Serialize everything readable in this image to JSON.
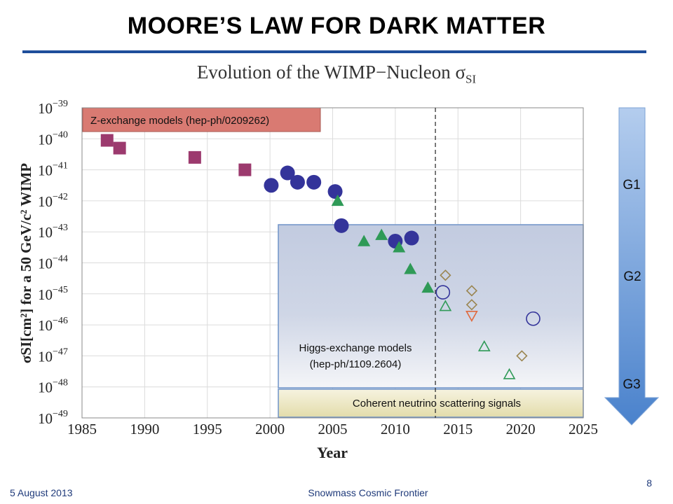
{
  "slide": {
    "title": "MOORE’S LAW FOR DARK MATTER",
    "footer_left": "5 August 2013",
    "footer_center": "Snowmass Cosmic Frontier",
    "page_number": "8"
  },
  "chart_data": {
    "type": "scatter",
    "title_main": "Evolution of the WIMP−Nucleon σ",
    "title_sub": "SI",
    "xlabel": "Year",
    "ylabel": "σSI[cm²] for a 50 GeV/c² WIMP",
    "xlim": [
      1985,
      2025
    ],
    "ylim_log10": [
      -49,
      -39
    ],
    "x_ticks": [
      1985,
      1990,
      1995,
      2000,
      2005,
      2010,
      2015,
      2020,
      2025
    ],
    "y_ticks_exp": [
      -39,
      -40,
      -41,
      -42,
      -43,
      -44,
      -45,
      -46,
      -47,
      -48,
      -49
    ],
    "y_tick_base": "10",
    "reference_line_year": 2013.2,
    "grid": true,
    "series": [
      {
        "marker": "square",
        "color": "#9c3a6e",
        "filled": true,
        "points": [
          [
            1987,
            -40.05
          ],
          [
            1988,
            -40.3
          ],
          [
            1994,
            -40.6
          ],
          [
            1998,
            -41.0
          ]
        ]
      },
      {
        "marker": "circle",
        "color": "#34349a",
        "filled": true,
        "points": [
          [
            2000.1,
            -41.5
          ],
          [
            2001.4,
            -41.1
          ],
          [
            2002.2,
            -41.4
          ],
          [
            2003.5,
            -41.4
          ],
          [
            2005.2,
            -41.7
          ],
          [
            2005.7,
            -42.8
          ],
          [
            2010,
            -43.3
          ],
          [
            2011.3,
            -43.2
          ]
        ]
      },
      {
        "marker": "triangle-up",
        "color": "#2f9a57",
        "filled": true,
        "points": [
          [
            2005.4,
            -42.0
          ],
          [
            2007.5,
            -43.3
          ],
          [
            2008.9,
            -43.1
          ],
          [
            2010.3,
            -43.5
          ],
          [
            2011.2,
            -44.2
          ],
          [
            2012.6,
            -44.8
          ]
        ]
      },
      {
        "marker": "circle",
        "color": "#34349a",
        "filled": false,
        "points": [
          [
            2013.8,
            -44.95
          ],
          [
            2021,
            -45.8
          ]
        ]
      },
      {
        "marker": "triangle-up",
        "color": "#2f9a57",
        "filled": false,
        "points": [
          [
            2014,
            -45.4
          ],
          [
            2017.1,
            -46.7
          ],
          [
            2019.1,
            -47.6
          ]
        ]
      },
      {
        "marker": "diamond",
        "color": "#9a8550",
        "filled": false,
        "points": [
          [
            2014,
            -44.4
          ],
          [
            2016.1,
            -44.9
          ],
          [
            2016.1,
            -45.35
          ],
          [
            2020.1,
            -47.0
          ]
        ]
      },
      {
        "marker": "triangle-down",
        "color": "#e06a3f",
        "filled": false,
        "points": [
          [
            2016.1,
            -45.7
          ]
        ]
      }
    ],
    "regions": [
      {
        "label": "Z-exchange models (hep-ph/0209262)",
        "color": "#d97a72"
      },
      {
        "label_line1": "Higgs-exchange models",
        "label_line2": "(hep-ph/1109.2604)",
        "color": "#b8c4dc"
      },
      {
        "label": "Coherent neutrino scattering signals",
        "color": "#e9e2b5"
      }
    ],
    "generation_arrow": {
      "labels": [
        "G1",
        "G2",
        "G3"
      ],
      "color": "#5b8fd0"
    }
  }
}
